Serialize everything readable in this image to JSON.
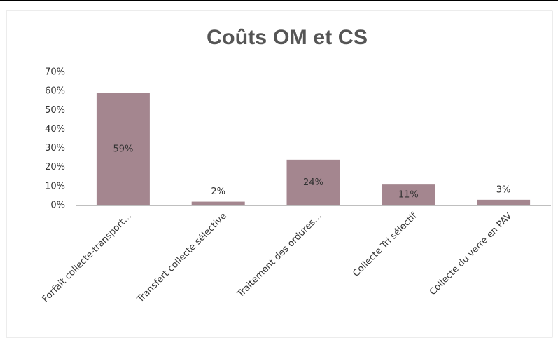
{
  "chart_data": {
    "type": "bar",
    "title": "Coûts OM et CS",
    "categories": [
      "Forfait collecte-transport…",
      "Transfert collecte sélective",
      "Traitement des ordures…",
      "Collecte Tri sélectif",
      "Collecte du verre en PAV"
    ],
    "values": [
      59,
      2,
      24,
      11,
      3
    ],
    "value_labels": [
      "59%",
      "2%",
      "24%",
      "11%",
      "3%"
    ],
    "color": "#a4868f",
    "ylim": [
      0,
      70
    ],
    "yticks": [
      {
        "value": 0,
        "label": "0%"
      },
      {
        "value": 10,
        "label": "10%"
      },
      {
        "value": 20,
        "label": "20%"
      },
      {
        "value": 30,
        "label": "30%"
      },
      {
        "value": 40,
        "label": "40%"
      },
      {
        "value": 50,
        "label": "50%"
      },
      {
        "value": 60,
        "label": "60%"
      },
      {
        "value": 70,
        "label": "70%"
      }
    ],
    "grid": false
  }
}
